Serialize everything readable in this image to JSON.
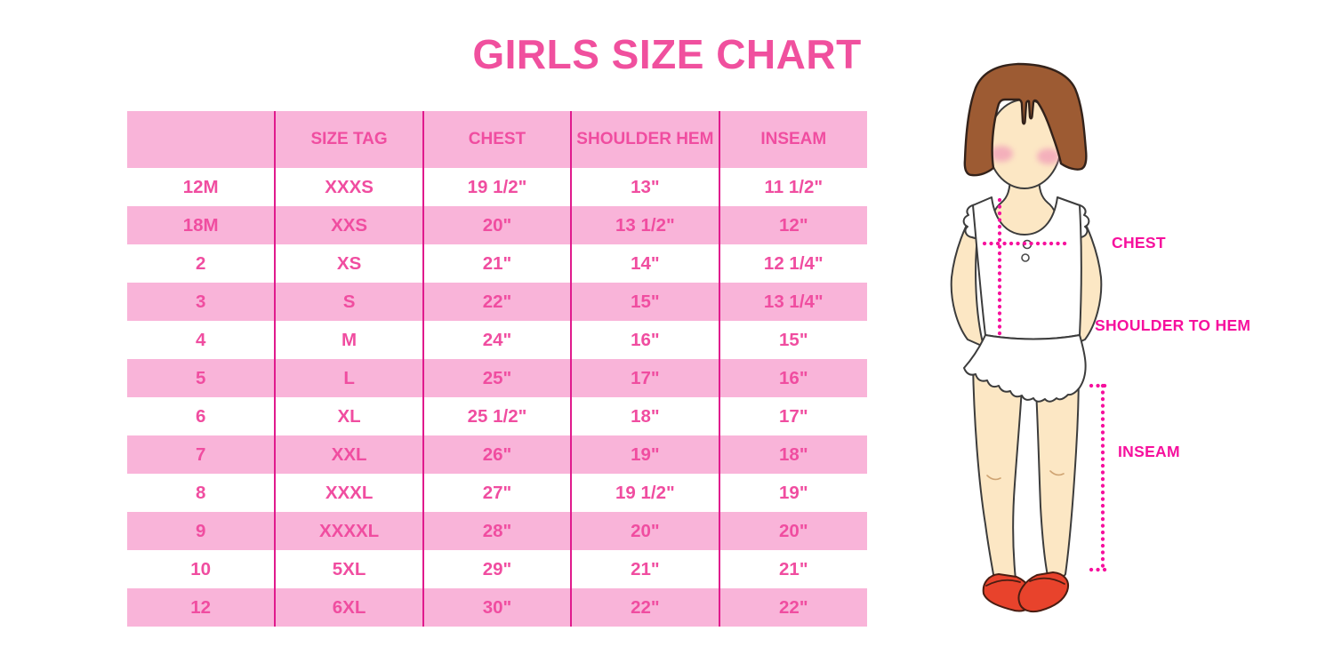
{
  "title": "GIRLS SIZE CHART",
  "table": {
    "headers": [
      "",
      "SIZE TAG",
      "CHEST",
      "SHOULDER HEM",
      "INSEAM"
    ],
    "rows": [
      [
        "12M",
        "XXXS",
        "19 1/2\"",
        "13\"",
        "11 1/2\""
      ],
      [
        "18M",
        "XXS",
        "20\"",
        "13 1/2\"",
        "12\""
      ],
      [
        "2",
        "XS",
        "21\"",
        "14\"",
        "12 1/4\""
      ],
      [
        "3",
        "S",
        "22\"",
        "15\"",
        "13 1/4\""
      ],
      [
        "4",
        "M",
        "24\"",
        "16\"",
        "15\""
      ],
      [
        "5",
        "L",
        "25\"",
        "17\"",
        "16\""
      ],
      [
        "6",
        "XL",
        "25 1/2\"",
        "18\"",
        "17\""
      ],
      [
        "7",
        "XXL",
        "26\"",
        "19\"",
        "18\""
      ],
      [
        "8",
        "XXXL",
        "27\"",
        "19 1/2\"",
        "19\""
      ],
      [
        "9",
        "XXXXL",
        "28\"",
        "20\"",
        "20\""
      ],
      [
        "10",
        "5XL",
        "29\"",
        "21\"",
        "21\""
      ],
      [
        "12",
        "6XL",
        "30\"",
        "22\"",
        "22\""
      ]
    ]
  },
  "diagram": {
    "labels": {
      "chest": "CHEST",
      "shoulder_to_hem": "SHOULDER TO HEM",
      "inseam": "INSEAM"
    }
  },
  "colors": {
    "title": "#F0509E",
    "row": "#F9B4D9",
    "divider": "#E01B8D",
    "text": "#F04DA0",
    "label": "#F6109D",
    "hair": "#9D5B33",
    "skin": "#FCE7C4",
    "blush": "#F2A2B9",
    "shoe": "#E8432C"
  }
}
